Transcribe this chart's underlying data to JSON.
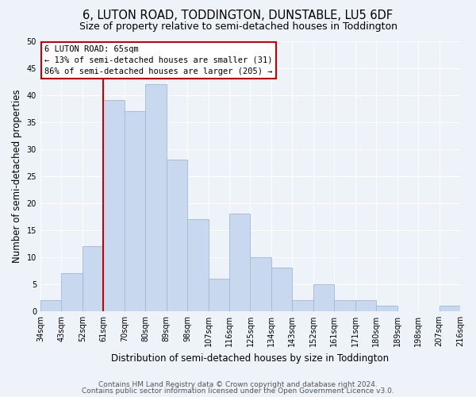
{
  "title": "6, LUTON ROAD, TODDINGTON, DUNSTABLE, LU5 6DF",
  "subtitle": "Size of property relative to semi-detached houses in Toddington",
  "xlabel": "Distribution of semi-detached houses by size in Toddington",
  "ylabel": "Number of semi-detached properties",
  "bins": [
    "34sqm",
    "43sqm",
    "52sqm",
    "61sqm",
    "70sqm",
    "80sqm",
    "89sqm",
    "98sqm",
    "107sqm",
    "116sqm",
    "125sqm",
    "134sqm",
    "143sqm",
    "152sqm",
    "161sqm",
    "171sqm",
    "180sqm",
    "189sqm",
    "198sqm",
    "207sqm",
    "216sqm"
  ],
  "values": [
    2,
    7,
    12,
    39,
    37,
    42,
    28,
    17,
    6,
    18,
    10,
    8,
    2,
    5,
    2,
    2,
    1,
    0,
    0,
    1
  ],
  "bar_color": "#c8d9ef",
  "bar_edge_color": "#9eb8d8",
  "property_line_label": "6 LUTON ROAD: 65sqm",
  "annotation_line1": "← 13% of semi-detached houses are smaller (31)",
  "annotation_line2": "86% of semi-detached houses are larger (205) →",
  "vline_color": "#cc0000",
  "annotation_box_facecolor": "#ffffff",
  "annotation_box_edgecolor": "#cc0000",
  "ylim": [
    0,
    50
  ],
  "yticks": [
    0,
    5,
    10,
    15,
    20,
    25,
    30,
    35,
    40,
    45,
    50
  ],
  "footer1": "Contains HM Land Registry data © Crown copyright and database right 2024.",
  "footer2": "Contains public sector information licensed under the Open Government Licence v3.0.",
  "background_color": "#eef2f9",
  "grid_color": "#ffffff",
  "title_fontsize": 10.5,
  "subtitle_fontsize": 9,
  "axis_label_fontsize": 8.5,
  "tick_fontsize": 7,
  "annotation_fontsize": 7.5,
  "footer_fontsize": 6.5,
  "vline_x_bar_index": 3
}
